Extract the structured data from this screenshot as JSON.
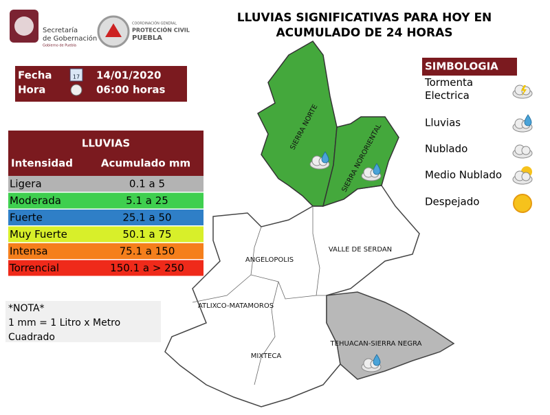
{
  "header": {
    "logo_left": [
      "Secretaría",
      "de Gobernación",
      "Gobierno de Puebla"
    ],
    "logo_right": [
      "COORDINACIÓN GENERAL",
      "PROTECCIÓN CIVIL",
      "PUEBLA"
    ],
    "title": [
      "LLUVIAS SIGNIFICATIVAS PARA HOY EN",
      "ACUMULADO DE 24 HORAS"
    ]
  },
  "date_box": {
    "fecha_label": "Fecha",
    "calendar_icon": "17",
    "fecha": "14/01/2020",
    "hora_label": "Hora",
    "hora": "06:00 horas"
  },
  "table": {
    "title": "LLUVIAS",
    "columns": [
      "Intensidad",
      "Acumulado mm"
    ],
    "rows": [
      [
        "Ligera",
        "0.1 a 5"
      ],
      [
        "Moderada",
        "5.1 a 25"
      ],
      [
        "Fuerte",
        "25.1 a 50"
      ],
      [
        "Muy Fuerte",
        "50.1 a 75"
      ],
      [
        "Intensa",
        "75.1 a 150"
      ],
      [
        "Torrencial",
        "150.1 a > 250"
      ]
    ]
  },
  "note": {
    "title": "*NOTA*",
    "lines": [
      "1 mm = 1 Litro x Metro",
      "Cuadrado"
    ]
  },
  "legend": {
    "title": "SIMBOLOGIA",
    "items": [
      [
        "Tormenta",
        "Electrica"
      ],
      [
        "Lluvias"
      ],
      [
        "Nublado"
      ],
      [
        "Medio Nublado"
      ],
      [
        "Despejado"
      ]
    ]
  },
  "map": {
    "regions": [
      "SIERRA NORTE",
      "SIERRA NORORIENTAL",
      "VALLE DE SERDAN",
      "ANGELOPOLIS",
      "ATLIXCO-MATAMOROS",
      "MIXTECA",
      "TEHUACAN-SIERRA NEGRA"
    ]
  }
}
